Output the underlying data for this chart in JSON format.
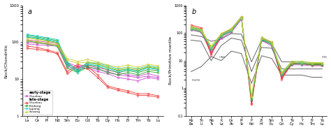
{
  "panel_a": {
    "xlabel_elements": [
      "La",
      "Ce",
      "Pr",
      "Nd",
      "Sm",
      "Eu",
      "Gd",
      "Tb",
      "Dy",
      "Ho",
      "Er",
      "Tm",
      "Yb",
      "Lu"
    ],
    "ylabel": "Rock/Chondritic",
    "label": "a",
    "ylim": [
      1,
      1000
    ],
    "series": [
      {
        "group": "early",
        "color": "#CC44CC",
        "values": [
          90,
          85,
          82,
          78,
          22,
          18,
          20,
          16,
          14,
          11,
          10,
          9,
          11,
          10
        ]
      },
      {
        "group": "early",
        "color": "#CC44CC",
        "values": [
          100,
          95,
          90,
          85,
          25,
          20,
          22,
          18,
          16,
          13,
          12,
          11,
          12,
          11
        ]
      },
      {
        "group": "early",
        "color": "#CC44CC",
        "values": [
          115,
          108,
          100,
          92,
          28,
          22,
          24,
          20,
          18,
          15,
          13,
          12,
          14,
          12
        ]
      },
      {
        "group": "late",
        "color": "#EE3333",
        "values": [
          78,
          72,
          62,
          52,
          16,
          25,
          22,
          13,
          6.5,
          5.5,
          4.8,
          4.0,
          4.0,
          3.5
        ]
      },
      {
        "group": "late",
        "color": "#EE3333",
        "values": [
          68,
          64,
          58,
          48,
          14,
          22,
          19,
          11,
          6.0,
          5.0,
          4.3,
          3.6,
          3.6,
          3.2
        ]
      },
      {
        "group": "late",
        "color": "#22AA22",
        "values": [
          155,
          140,
          125,
          110,
          27,
          18,
          27,
          25,
          21,
          17,
          19,
          17,
          21,
          19
        ]
      },
      {
        "group": "late",
        "color": "#22AA22",
        "values": [
          138,
          125,
          112,
          98,
          24,
          16,
          24,
          22,
          18,
          15,
          17,
          15,
          18,
          17
        ]
      },
      {
        "group": "late",
        "color": "#22AA22",
        "values": [
          108,
          98,
          88,
          78,
          20,
          15,
          21,
          19,
          15,
          13,
          15,
          13,
          16,
          15
        ]
      },
      {
        "group": "late",
        "color": "#22CCCC",
        "values": [
          162,
          148,
          132,
          118,
          29,
          17,
          29,
          27,
          23,
          19,
          21,
          19,
          23,
          21
        ]
      },
      {
        "group": "late",
        "color": "#22CCCC",
        "values": [
          143,
          132,
          118,
          103,
          25,
          15,
          25,
          23,
          20,
          16,
          18,
          16,
          20,
          18
        ]
      },
      {
        "group": "late",
        "color": "#CCCC22",
        "values": [
          128,
          118,
          106,
          93,
          36,
          30,
          34,
          29,
          24,
          21,
          24,
          21,
          25,
          23
        ]
      },
      {
        "group": "late",
        "color": "#CCCC22",
        "values": [
          112,
          103,
          93,
          83,
          32,
          27,
          29,
          26,
          21,
          18,
          21,
          18,
          22,
          20
        ]
      }
    ]
  },
  "panel_b": {
    "xlabel_top": [
      "Rb",
      "Th",
      "Nb",
      "K",
      "Ce",
      "Pr",
      "P",
      "Zr",
      "Sm",
      "Ti",
      "Tb",
      "Y",
      "Er",
      "Yb"
    ],
    "xlabel_bottom": [
      "Ba",
      "U",
      "Ta",
      "La",
      "Pb",
      "Sr",
      "Nd",
      "Hf",
      "Eu",
      "Gd",
      "Dy",
      "Ho",
      "Tm",
      "Lu"
    ],
    "ylabel": "Rock/Primitive mantle",
    "label": "b",
    "ylim": [
      0.1,
      1000
    ],
    "ref_lines": [
      {
        "label": "MIB",
        "pos": "right_top",
        "color": "#666666",
        "values": [
          85,
          75,
          50,
          60,
          95,
          90,
          9,
          55,
          42,
          9,
          9,
          8,
          8,
          8
        ]
      },
      {
        "label": "OAB",
        "pos": "middle_left",
        "color": "#666666",
        "values": [
          55,
          50,
          10,
          35,
          65,
          55,
          4,
          30,
          28,
          5,
          5,
          5,
          5,
          5
        ]
      },
      {
        "label": "MoRB",
        "pos": "left_bottom",
        "color": "#666666",
        "values": [
          4,
          6,
          14,
          10,
          22,
          18,
          1.5,
          15,
          12,
          3,
          3,
          3,
          2.5,
          2.5
        ]
      }
    ],
    "series": [
      {
        "color": "#CC44CC",
        "values": [
          145,
          115,
          22,
          75,
          115,
          340,
          0.4,
          58,
          38,
          2.8,
          7.5,
          7.5,
          7,
          7
        ]
      },
      {
        "color": "#CC44CC",
        "values": [
          128,
          105,
          20,
          65,
          105,
          310,
          0.35,
          53,
          34,
          2.6,
          7,
          7,
          6.5,
          6.5
        ]
      },
      {
        "color": "#EE3333",
        "values": [
          195,
          155,
          18,
          90,
          140,
          390,
          0.28,
          68,
          46,
          2.3,
          8.5,
          8.5,
          7.5,
          7.5
        ]
      },
      {
        "color": "#EE3333",
        "values": [
          175,
          140,
          16,
          80,
          125,
          360,
          0.26,
          62,
          41,
          2.1,
          8,
          8,
          7,
          7
        ]
      },
      {
        "color": "#22AA22",
        "values": [
          155,
          125,
          28,
          85,
          130,
          370,
          0.42,
          63,
          43,
          3.3,
          8.5,
          8.5,
          7.5,
          7.5
        ]
      },
      {
        "color": "#22AA22",
        "values": [
          136,
          110,
          26,
          76,
          116,
          342,
          0.38,
          56,
          38,
          3.0,
          7.5,
          7.5,
          7,
          7
        ]
      },
      {
        "color": "#22CCCC",
        "values": [
          165,
          130,
          30,
          90,
          135,
          382,
          0.48,
          66,
          44,
          3.6,
          9.5,
          9,
          8.5,
          8.5
        ]
      },
      {
        "color": "#22CCCC",
        "values": [
          146,
          118,
          27,
          80,
          120,
          352,
          0.43,
          60,
          40,
          3.3,
          8.5,
          8,
          8,
          8
        ]
      },
      {
        "color": "#CCCC22",
        "values": [
          170,
          136,
          33,
          97,
          144,
          388,
          0.52,
          70,
          48,
          3.8,
          9.5,
          9.5,
          8.5,
          8.5
        ]
      },
      {
        "color": "#CCCC22",
        "values": [
          150,
          120,
          30,
          87,
          128,
          358,
          0.48,
          64,
          43,
          3.5,
          8.5,
          8.5,
          8,
          8
        ]
      }
    ]
  },
  "bg_color": "#ffffff",
  "legend_a": {
    "early_stage_label": "early-stage",
    "early_color": "#CC44CC",
    "late_stage_label": "late-stage",
    "entries": [
      {
        "label": "Chuzhou",
        "color": "#CC44CC"
      },
      {
        "label": "Chuzhou",
        "color": "#EE3333"
      },
      {
        "label": "Feidong",
        "color": "#22AA22"
      },
      {
        "label": "Lujiang",
        "color": "#22CCCC"
      },
      {
        "label": "Susong",
        "color": "#CCCC22"
      }
    ]
  }
}
